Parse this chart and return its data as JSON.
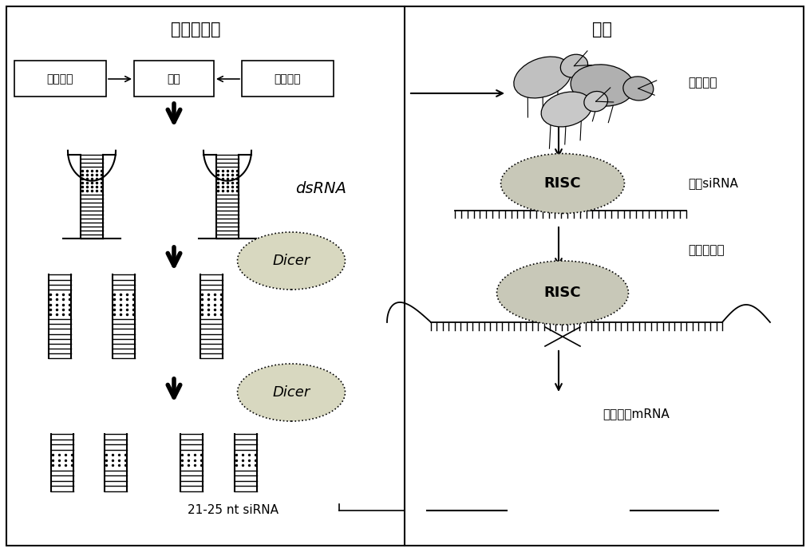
{
  "title_left": "转基因植物",
  "title_right": "蚜虫",
  "bg_color": "#ffffff",
  "labels": {
    "zhixiang": "止向基因",
    "jiange": "间隔",
    "fanxiang": "反向基因",
    "dsRNA": "dsRNA",
    "dicer1": "Dicer",
    "dicer2": "Dicer",
    "siRNA": "21-25 nt siRNA",
    "aphid_feed": "蚜虫取食",
    "risc1": "RISC",
    "load_sirna": "装载siRNA",
    "risc2": "RISC",
    "pair_cut": "配对、剪切",
    "degraded": "降解的靶mRNA"
  }
}
